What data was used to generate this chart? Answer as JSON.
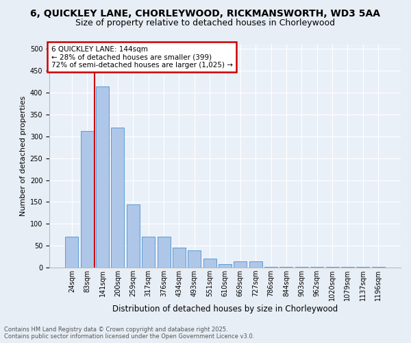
{
  "title1": "6, QUICKLEY LANE, CHORLEYWOOD, RICKMANSWORTH, WD3 5AA",
  "title2": "Size of property relative to detached houses in Chorleywood",
  "xlabel": "Distribution of detached houses by size in Chorleywood",
  "ylabel": "Number of detached properties",
  "footer": "Contains HM Land Registry data © Crown copyright and database right 2025.\nContains public sector information licensed under the Open Government Licence v3.0.",
  "bins": [
    "24sqm",
    "83sqm",
    "141sqm",
    "200sqm",
    "259sqm",
    "317sqm",
    "376sqm",
    "434sqm",
    "493sqm",
    "551sqm",
    "610sqm",
    "669sqm",
    "727sqm",
    "786sqm",
    "844sqm",
    "903sqm",
    "962sqm",
    "1020sqm",
    "1079sqm",
    "1137sqm",
    "1196sqm"
  ],
  "values": [
    70,
    312,
    415,
    320,
    145,
    70,
    70,
    45,
    40,
    20,
    8,
    14,
    14,
    2,
    2,
    2,
    2,
    2,
    2,
    2,
    2
  ],
  "bar_color": "#aec6e8",
  "bar_edge_color": "#5b9bd5",
  "annotation_box_text": "6 QUICKLEY LANE: 144sqm\n← 28% of detached houses are smaller (399)\n72% of semi-detached houses are larger (1,025) →",
  "annotation_box_color": "#ffffff",
  "annotation_box_edge_color": "#cc0000",
  "vline_x_index": 2,
  "vline_color": "#cc0000",
  "bg_color": "#e8eef5",
  "plot_bg_color": "#eaf0f8",
  "grid_color": "#ffffff",
  "ylim": [
    0,
    510
  ],
  "title1_fontsize": 10,
  "title2_fontsize": 9,
  "xlabel_fontsize": 8.5,
  "ylabel_fontsize": 8,
  "tick_fontsize": 7,
  "annotation_fontsize": 7.5,
  "footer_fontsize": 6
}
